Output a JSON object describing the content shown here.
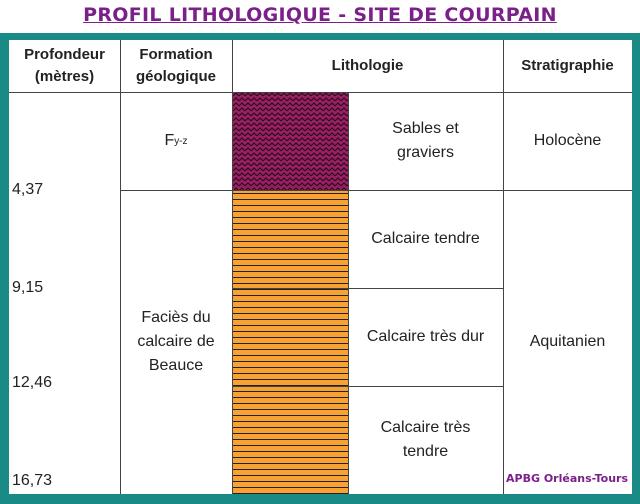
{
  "header": {
    "title": "PROFIL LITHOLOGIQUE - SITE DE COURPAIN"
  },
  "table": {
    "columns": [
      "Profondeur (mètres)",
      "Formation géologique",
      "Lithologie",
      "Stratigraphie"
    ],
    "depths": [
      "4,37",
      "9,15",
      "12,46",
      "16,73"
    ],
    "formations": [
      {
        "main": "F",
        "subscript": "y-z"
      },
      "Faciès du calcaire de Beauce"
    ],
    "lithologies": [
      "Sables et graviers",
      "Calcaire tendre",
      "Calcaire très dur",
      "Calcaire très tendre"
    ],
    "stratigraphy": [
      "Holocène",
      "Aquitanien"
    ]
  },
  "footer": {
    "credit": "APBG Orléans-Tours"
  }
}
